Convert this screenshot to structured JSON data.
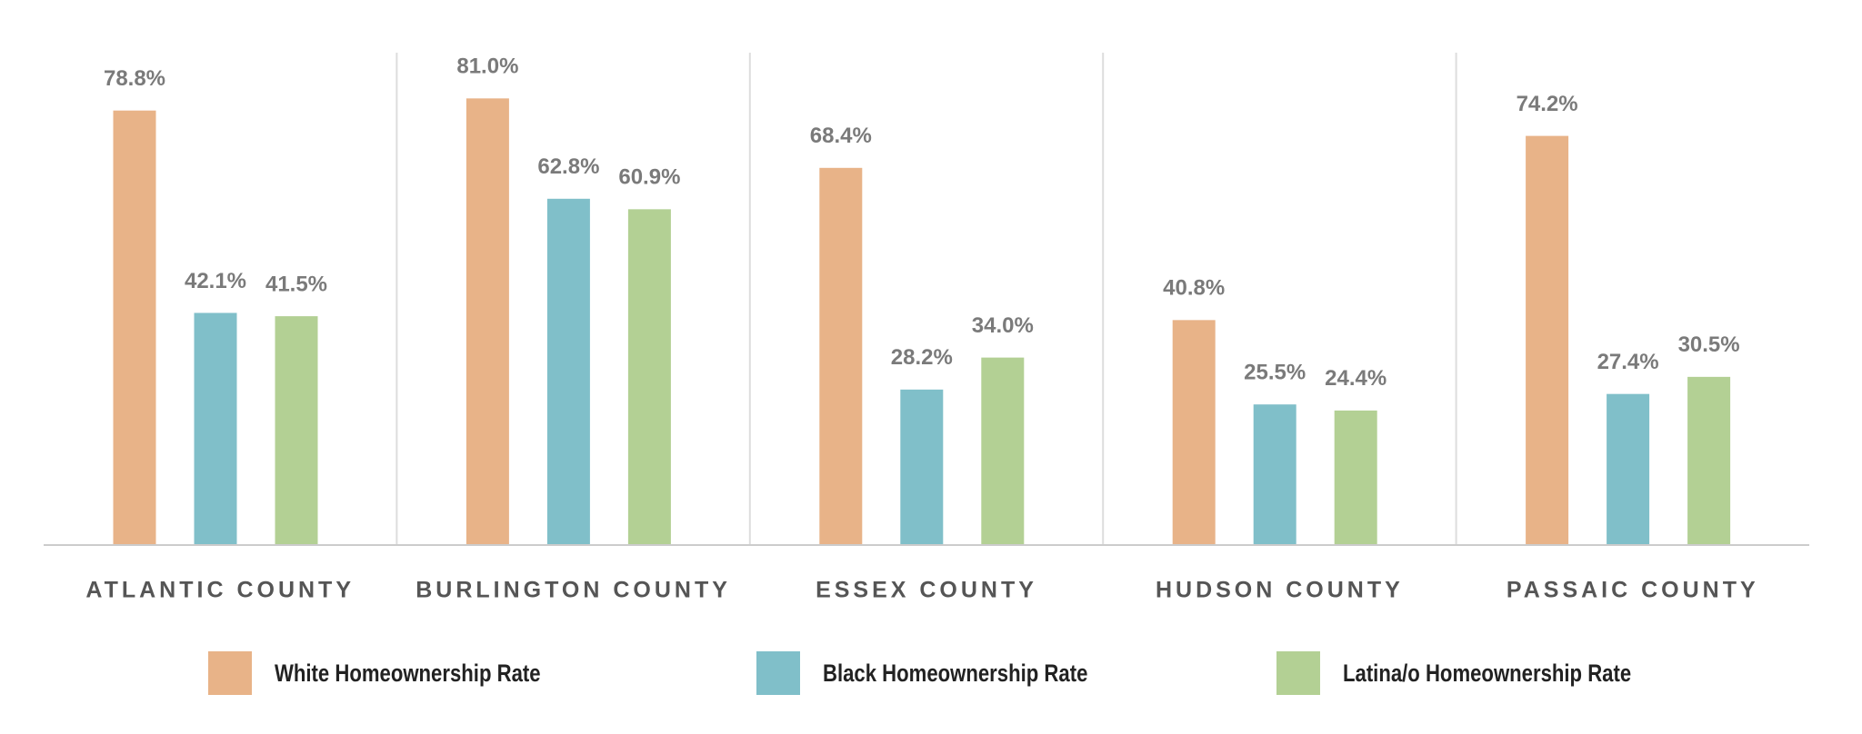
{
  "chart_data": {
    "type": "bar",
    "categories": [
      "ATLANTIC COUNTY",
      "BURLINGTON COUNTY",
      "ESSEX COUNTY",
      "HUDSON COUNTY",
      "PASSAIC COUNTY"
    ],
    "series": [
      {
        "name": "White Homeownership Rate",
        "color": "#e8b388",
        "values": [
          78.8,
          81.0,
          68.4,
          40.8,
          74.2
        ],
        "value_labels": [
          "78.8%",
          "81.0%",
          "68.4%",
          "40.8%",
          "74.2%"
        ]
      },
      {
        "name": "Black Homeownership Rate",
        "color": "#80bfc9",
        "values": [
          42.1,
          62.8,
          28.2,
          25.5,
          27.4
        ],
        "value_labels": [
          "42.1%",
          "62.8%",
          "28.2%",
          "25.5%",
          "27.4%"
        ]
      },
      {
        "name": "Latina/o Homeownership Rate",
        "color": "#b3d094",
        "values": [
          41.5,
          60.9,
          34.0,
          24.4,
          30.5
        ],
        "value_labels": [
          "41.5%",
          "60.9%",
          "34.0%",
          "24.4%",
          "30.5%"
        ]
      }
    ]
  }
}
